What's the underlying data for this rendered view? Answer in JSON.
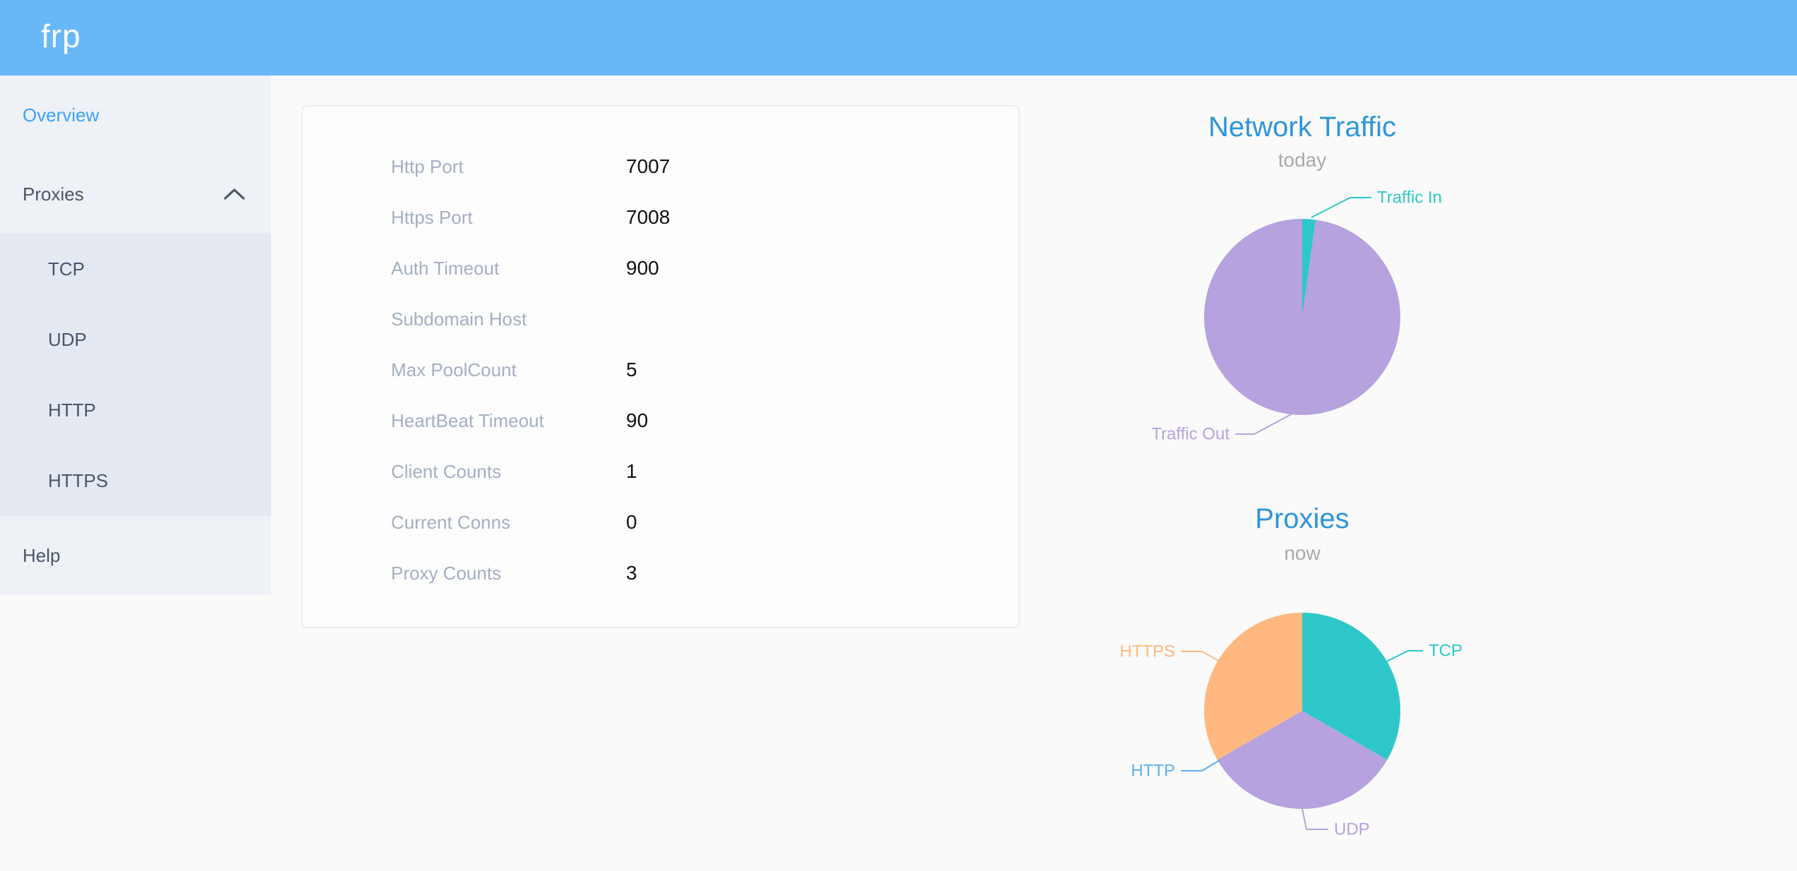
{
  "header": {
    "logo": "frp"
  },
  "colors": {
    "header_bg": "#68b8f8",
    "sidebar_bg": "#eef1f6",
    "submenu_bg": "#e5e9f2",
    "menu_text": "#48576a",
    "active_menu_text": "#3ba2f8",
    "chart_title_blue": "#2e95d9",
    "card_label_gray": "#a4afc0",
    "teal": "#2ec7c9",
    "purple": "#b6a2de",
    "blue": "#5ab1ef",
    "orange": "#ffb980"
  },
  "sidebar": {
    "overview": "Overview",
    "proxies": "Proxies",
    "submenu": [
      "TCP",
      "UDP",
      "HTTP",
      "HTTPS"
    ],
    "help": "Help"
  },
  "server_info": {
    "rows": [
      {
        "label": "Http Port",
        "value": "7007"
      },
      {
        "label": "Https Port",
        "value": "7008"
      },
      {
        "label": "Auth Timeout",
        "value": "900"
      },
      {
        "label": "Subdomain Host",
        "value": ""
      },
      {
        "label": "Max PoolCount",
        "value": "5"
      },
      {
        "label": "HeartBeat Timeout",
        "value": "90"
      },
      {
        "label": "Client Counts",
        "value": "1"
      },
      {
        "label": "Current Conns",
        "value": "0"
      },
      {
        "label": "Proxy Counts",
        "value": "3"
      }
    ]
  },
  "chart_data": [
    {
      "type": "pie",
      "title": "Network Traffic",
      "subtitle": "today",
      "labels": [
        "Traffic In",
        "Traffic Out"
      ],
      "values": [
        2.2,
        97.8
      ],
      "value_unit": "percent (estimated from slice angles)",
      "colors": [
        "#2ec7c9",
        "#b6a2de"
      ],
      "label_position": "outside",
      "legend": "none"
    },
    {
      "type": "pie",
      "title": "Proxies",
      "subtitle": "now",
      "labels": [
        "TCP",
        "UDP",
        "HTTP",
        "HTTPS"
      ],
      "values": [
        1,
        1,
        0,
        1
      ],
      "value_unit": "proxy count",
      "colors": [
        "#2ec7c9",
        "#b6a2de",
        "#5ab1ef",
        "#ffb980"
      ],
      "label_position": "outside",
      "legend": "none"
    }
  ]
}
